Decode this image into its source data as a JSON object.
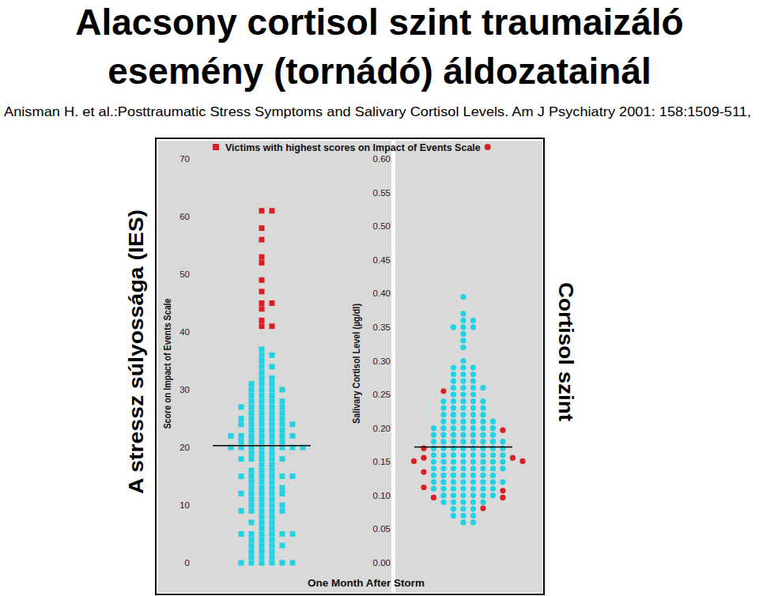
{
  "title": [
    "Alacsony cortisol szint traumaizáló",
    "esemény (tornádó) áldozatainál"
  ],
  "citation": "Anisman  H. et al.:Posttraumatic Stress Symptoms and Salivary Cortisol Levels. Am J Psychiatry 2001: 158:1509-511,",
  "side_labels": {
    "left": "A stressz súlyossága (IES)",
    "right": "Cortisol szint"
  },
  "x_label": "One Month After Storm",
  "chart_data": [
    {
      "type": "strip",
      "y_label": "Score on Impact of Events Scale",
      "marker": "square",
      "ylim": [
        0,
        70
      ],
      "yticks": [
        0,
        10,
        20,
        30,
        40,
        50,
        60,
        70
      ],
      "mean": 20.3,
      "series": [
        {
          "color": "#1fd2e4",
          "values": [
            37,
            36,
            36,
            35,
            34,
            34,
            33,
            32,
            32,
            31,
            31,
            31,
            30,
            30,
            30,
            30,
            29,
            29,
            29,
            28,
            28,
            28,
            28,
            27,
            27,
            27,
            27,
            27,
            26,
            26,
            26,
            26,
            25,
            25,
            25,
            25,
            25,
            24,
            24,
            24,
            24,
            24,
            24,
            23,
            23,
            23,
            23,
            22,
            22,
            22,
            22,
            22,
            22,
            22,
            21,
            21,
            21,
            21,
            21,
            20,
            20,
            20,
            20,
            20,
            20,
            20,
            20,
            19,
            19,
            19,
            18,
            18,
            18,
            18,
            18,
            17,
            17,
            16,
            16,
            16,
            15,
            15,
            15,
            15,
            15,
            15,
            14,
            14,
            14,
            13,
            13,
            13,
            13,
            12,
            12,
            12,
            12,
            12,
            11,
            11,
            11,
            10,
            10,
            10,
            10,
            9,
            9,
            9,
            9,
            9,
            8,
            8,
            7,
            7,
            7,
            6,
            6,
            5,
            5,
            5,
            5,
            5,
            5,
            4,
            4,
            4,
            3,
            3,
            3,
            3,
            2,
            2,
            2,
            1,
            1,
            1,
            0,
            0,
            0,
            0,
            0,
            0
          ]
        },
        {
          "name": "Victims with highest scores on Impact of Events Scale",
          "color": "#d91e24",
          "values": [
            61,
            61,
            58,
            56,
            53,
            52,
            49,
            47,
            45,
            45,
            44,
            42,
            41,
            41
          ]
        }
      ]
    },
    {
      "type": "strip",
      "y_label": "Salivary Cortisol Level (µg/dl)",
      "marker": "circle",
      "ylim": [
        0,
        0.6
      ],
      "yticks": [
        {
          "value": 0,
          "label": "0.00"
        },
        0.05,
        {
          "value": 0.1,
          "label": "0.10"
        },
        0.15,
        {
          "value": 0.2,
          "label": "0.20"
        },
        0.25,
        {
          "value": 0.3,
          "label": "0.30"
        },
        0.35,
        {
          "value": 0.4,
          "label": "0.40"
        },
        0.45,
        {
          "value": 0.5,
          "label": "0.50"
        },
        0.55,
        {
          "value": 0.6,
          "label": "0.60"
        }
      ],
      "mean": 0.172,
      "series": [
        {
          "color": "#1fd2e4",
          "values": [
            0.395,
            0.37,
            0.36,
            0.36,
            0.35,
            0.35,
            0.35,
            0.34,
            0.33,
            0.32,
            0.3,
            0.29,
            0.29,
            0.29,
            0.28,
            0.28,
            0.28,
            0.27,
            0.27,
            0.27,
            0.26,
            0.26,
            0.26,
            0.26,
            0.25,
            0.25,
            0.25,
            0.24,
            0.24,
            0.24,
            0.24,
            0.24,
            0.23,
            0.23,
            0.23,
            0.23,
            0.23,
            0.22,
            0.22,
            0.22,
            0.22,
            0.22,
            0.21,
            0.21,
            0.21,
            0.21,
            0.21,
            0.21,
            0.2,
            0.2,
            0.2,
            0.2,
            0.2,
            0.2,
            0.2,
            0.19,
            0.19,
            0.19,
            0.19,
            0.19,
            0.19,
            0.19,
            0.18,
            0.18,
            0.18,
            0.18,
            0.18,
            0.18,
            0.18,
            0.18,
            0.17,
            0.17,
            0.17,
            0.17,
            0.17,
            0.17,
            0.17,
            0.17,
            0.16,
            0.16,
            0.16,
            0.16,
            0.16,
            0.16,
            0.16,
            0.16,
            0.15,
            0.15,
            0.15,
            0.15,
            0.15,
            0.15,
            0.15,
            0.15,
            0.14,
            0.14,
            0.14,
            0.14,
            0.14,
            0.14,
            0.14,
            0.14,
            0.13,
            0.13,
            0.13,
            0.13,
            0.13,
            0.13,
            0.13,
            0.12,
            0.12,
            0.12,
            0.12,
            0.12,
            0.12,
            0.12,
            0.12,
            0.11,
            0.11,
            0.11,
            0.11,
            0.11,
            0.11,
            0.11,
            0.1,
            0.1,
            0.1,
            0.1,
            0.1,
            0.1,
            0.09,
            0.09,
            0.09,
            0.09,
            0.09,
            0.08,
            0.08,
            0.08,
            0.07,
            0.07,
            0.07,
            0.06,
            0.06
          ]
        },
        {
          "color": "#d91e24",
          "values": [
            0.255,
            0.197,
            0.17,
            0.156,
            0.156,
            0.151,
            0.151,
            0.135,
            0.112,
            0.107,
            0.097,
            0.097,
            0.081
          ]
        }
      ]
    }
  ]
}
